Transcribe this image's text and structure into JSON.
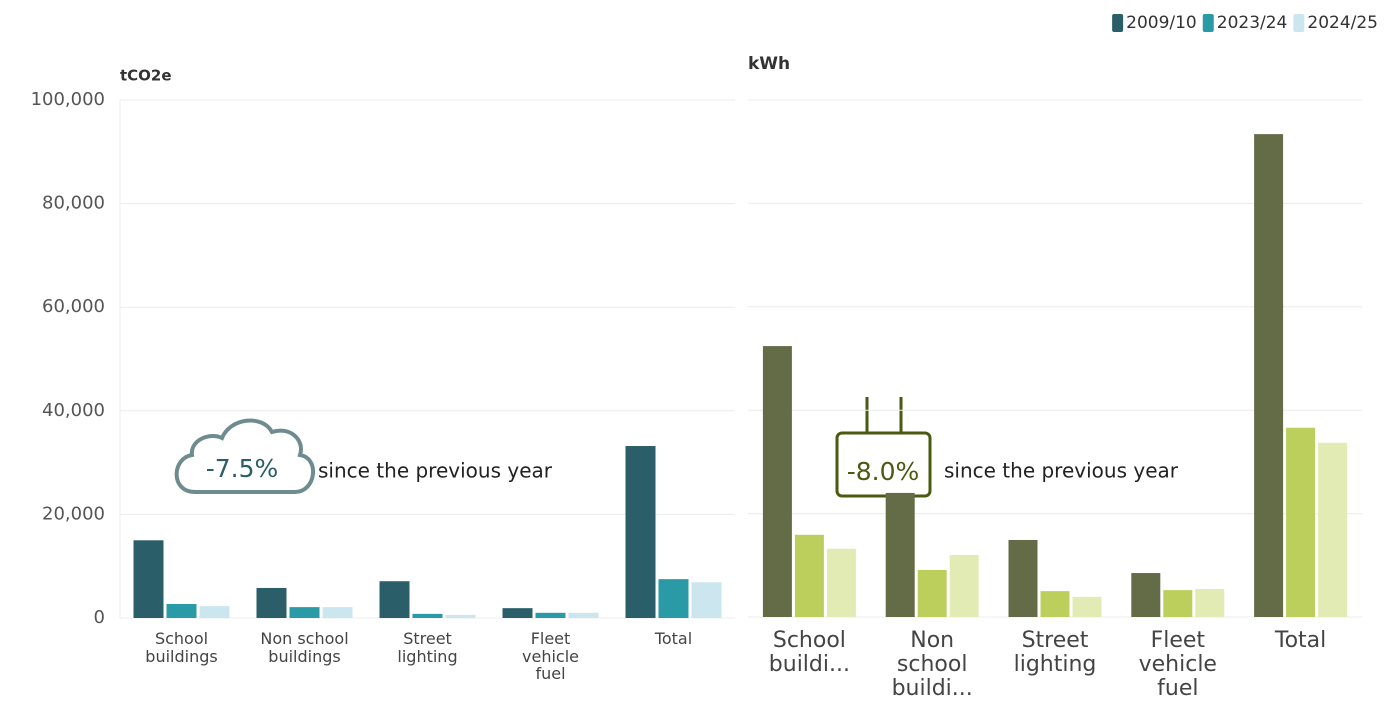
{
  "chart_data": [
    {
      "type": "bar",
      "y_label": "tCO2e",
      "categories": [
        "School buildings",
        "Non school buildings",
        "Street lighting",
        "Fleet vehicle fuel",
        "Total"
      ],
      "series": [
        {
          "name": "2009/10",
          "color": "#2a5e68",
          "values": [
            15000,
            5800,
            7100,
            1900,
            33200
          ]
        },
        {
          "name": "2023/24",
          "color": "#2a9aa6",
          "values": [
            2700,
            2100,
            800,
            1000,
            7500
          ]
        },
        {
          "name": "2024/25",
          "color": "#cce6ef",
          "values": [
            2300,
            2100,
            600,
            1000,
            6900
          ]
        }
      ],
      "ylim": [
        0,
        100000
      ],
      "yticks": [
        0,
        {
          "value": 20000,
          "label": "20,000"
        },
        {
          "value": 40000,
          "label": "40,000"
        },
        {
          "value": 60000,
          "label": "60,000"
        },
        {
          "value": 80000,
          "label": "80,000"
        },
        {
          "value": 100000,
          "label": "100,000"
        }
      ],
      "grid": true,
      "legend": "top-right",
      "annotation": {
        "value_text": "-7.5%",
        "text": "since the previous year"
      }
    },
    {
      "type": "bar",
      "y_label": "kWh",
      "categories": [
        "School buildi...",
        "Non school buildi...",
        "Street lighting",
        "Fleet vehicle fuel",
        "Total"
      ],
      "series": [
        {
          "name": "2009/10",
          "color": "#636b47",
          "values": [
            52400,
            24000,
            14900,
            8500,
            93400
          ]
        },
        {
          "name": "2023/24",
          "color": "#bccf5c",
          "values": [
            15900,
            9100,
            5000,
            5200,
            36600
          ]
        },
        {
          "name": "2024/25",
          "color": "#e3ebb5",
          "values": [
            13200,
            12000,
            3900,
            5400,
            33700
          ]
        }
      ],
      "ylim": [
        0,
        100000
      ],
      "yticks": [
        0,
        20000,
        40000,
        60000,
        80000,
        100000
      ],
      "grid": true,
      "annotation": {
        "value_text": "-8.0%",
        "text": "since the previous year"
      }
    }
  ]
}
